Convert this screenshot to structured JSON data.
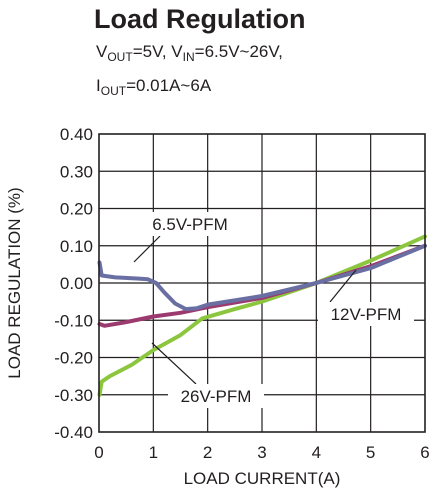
{
  "title": "Load Regulation",
  "conditions": {
    "line1": {
      "v": "V",
      "vout_sub": "OUT",
      "mid": "=5V, V",
      "vin_sub": "IN",
      "end": "=6.5V~26V,"
    },
    "line2": {
      "i": "I",
      "iout_sub": "OUT",
      "end": "=0.01A~6A"
    }
  },
  "chart_data": {
    "type": "line",
    "title": "Load Regulation",
    "xlabel": "LOAD CURRENT(A)",
    "ylabel": "LOAD REGULATION (%)",
    "xlim": [
      0,
      6
    ],
    "ylim": [
      -0.4,
      0.4
    ],
    "x_ticks": [
      "0",
      "1",
      "2",
      "3",
      "4",
      "5",
      "6"
    ],
    "y_ticks": [
      "0.40",
      "0.30",
      "0.20",
      "0.10",
      "0.00",
      "-0.10",
      "-0.20",
      "-0.30",
      "-0.40"
    ],
    "grid": true,
    "series": [
      {
        "name": "6.5V-PFM",
        "color": "#6a6fa3",
        "points": [
          [
            0.01,
            0.055
          ],
          [
            0.05,
            0.02
          ],
          [
            0.3,
            0.015
          ],
          [
            0.7,
            0.012
          ],
          [
            0.9,
            0.01
          ],
          [
            1.05,
            0.0
          ],
          [
            1.2,
            -0.025
          ],
          [
            1.4,
            -0.055
          ],
          [
            1.6,
            -0.07
          ],
          [
            1.8,
            -0.068
          ],
          [
            2.0,
            -0.058
          ],
          [
            3.0,
            -0.035
          ],
          [
            4.0,
            0.0
          ],
          [
            5.0,
            0.04
          ],
          [
            6.0,
            0.1
          ]
        ]
      },
      {
        "name": "12V-PFM",
        "color": "#9b3a6e",
        "points": [
          [
            0.01,
            -0.11
          ],
          [
            0.1,
            -0.115
          ],
          [
            0.5,
            -0.105
          ],
          [
            1.0,
            -0.09
          ],
          [
            1.5,
            -0.08
          ],
          [
            2.0,
            -0.065
          ],
          [
            3.0,
            -0.04
          ],
          [
            4.0,
            0.0
          ],
          [
            5.0,
            0.045
          ],
          [
            6.0,
            0.1
          ]
        ]
      },
      {
        "name": "26V-PFM",
        "color": "#8cc63f",
        "points": [
          [
            0.01,
            -0.3
          ],
          [
            0.05,
            -0.265
          ],
          [
            0.2,
            -0.25
          ],
          [
            0.6,
            -0.22
          ],
          [
            1.0,
            -0.18
          ],
          [
            1.5,
            -0.14
          ],
          [
            1.9,
            -0.095
          ],
          [
            2.5,
            -0.07
          ],
          [
            3.0,
            -0.05
          ],
          [
            4.0,
            0.0
          ],
          [
            5.0,
            0.06
          ],
          [
            6.0,
            0.125
          ]
        ]
      }
    ],
    "annotations": [
      {
        "text": "6.5V-PFM",
        "series": "6.5V-PFM"
      },
      {
        "text": "12V-PFM",
        "series": "12V-PFM"
      },
      {
        "text": "26V-PFM",
        "series": "26V-PFM"
      }
    ]
  }
}
